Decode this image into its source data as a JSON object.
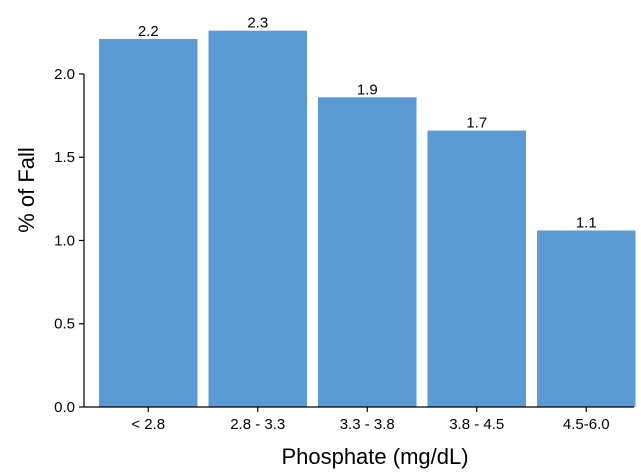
{
  "chart_data": {
    "type": "bar",
    "categories": [
      "< 2.8",
      "2.8 - 3.3",
      "3.3 - 3.8",
      "3.8 - 4.5",
      "4.5-6.0"
    ],
    "values": [
      2.21,
      2.26,
      1.86,
      1.66,
      1.06
    ],
    "data_labels": [
      "2.2",
      "2.3",
      "1.9",
      "1.7",
      "1.1"
    ],
    "xlabel": "Phosphate (mg/dL)",
    "ylabel": "% of Fall",
    "ylim": [
      0,
      2.3
    ],
    "yticks": [
      0.0,
      0.5,
      1.0,
      1.5,
      2.0
    ],
    "ytick_labels": [
      "0.0",
      "0.5",
      "1.0",
      "1.5",
      "2.0"
    ],
    "grid": false,
    "bar_color": "#5b9bd5"
  }
}
